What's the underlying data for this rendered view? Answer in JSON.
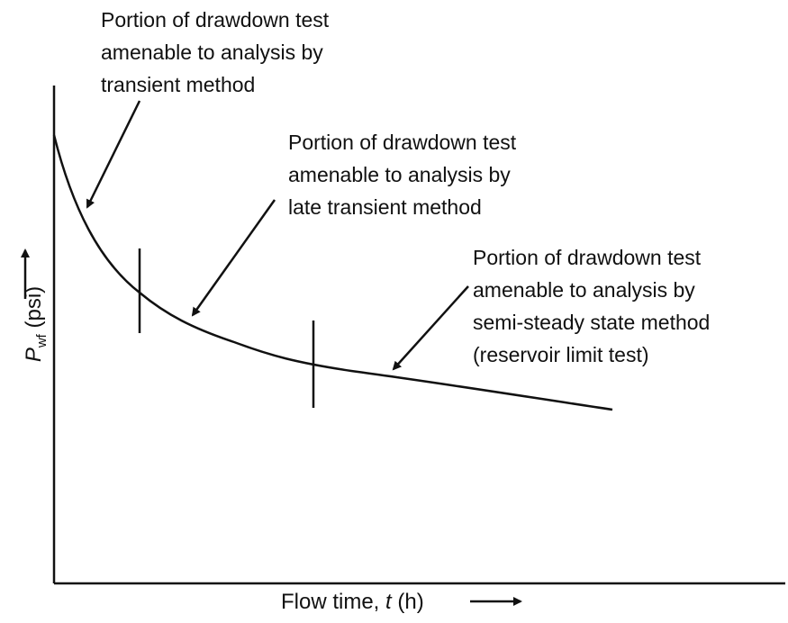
{
  "annotations": {
    "transient": "Portion of drawdown test\namenable to analysis by\ntransient method",
    "late_transient": "Portion of drawdown test\namenable to analysis by\nlate transient method",
    "semi_steady": "Portion of drawdown test\namenable to analysis by\nsemi-steady state method\n(reservoir limit test)"
  },
  "axes": {
    "x": {
      "prefix": "Flow time, ",
      "var": "t",
      "suffix": " (h)"
    },
    "y": {
      "var": "P",
      "sub": "wf",
      "unit": " (psi)"
    }
  },
  "colors": {
    "ink": "#111111",
    "background": "#ffffff"
  }
}
